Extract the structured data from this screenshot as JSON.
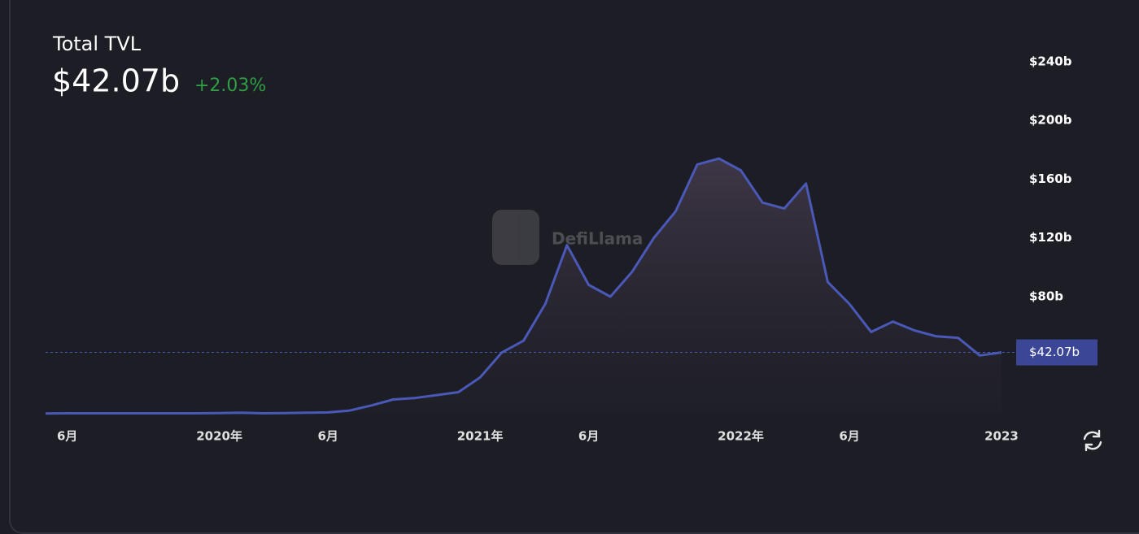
{
  "chart_data": {
    "type": "area-line",
    "title": "Total TVL",
    "headline": "$42.07b",
    "change": "+2.03%",
    "watermark": "DefiLlama",
    "color": "#4a58b8",
    "x": [
      "2019-05",
      "2019-06",
      "2019-07",
      "2019-08",
      "2019-09",
      "2019-10",
      "2019-11",
      "2019-12",
      "2020-01",
      "2020-02",
      "2020-03",
      "2020-04",
      "2020-05",
      "2020-06",
      "2020-07",
      "2020-08",
      "2020-09",
      "2020-10",
      "2020-11",
      "2020-12",
      "2021-01",
      "2021-02",
      "2021-03",
      "2021-04",
      "2021-05",
      "2021-06",
      "2021-07",
      "2021-08",
      "2021-09",
      "2021-10",
      "2021-11",
      "2021-12",
      "2022-01",
      "2022-02",
      "2022-03",
      "2022-04",
      "2022-05",
      "2022-06",
      "2022-07",
      "2022-08",
      "2022-09",
      "2022-10",
      "2022-11",
      "2022-12",
      "2023-01"
    ],
    "values": [
      0.5,
      0.6,
      0.6,
      0.6,
      0.6,
      0.6,
      0.6,
      0.6,
      0.7,
      1,
      0.6,
      0.8,
      1,
      1.2,
      2.5,
      6,
      10,
      11,
      13,
      15,
      25,
      42,
      50,
      75,
      115,
      88,
      80,
      97,
      120,
      138,
      170,
      174,
      166,
      144,
      140,
      157,
      90,
      75,
      56,
      63,
      57,
      53,
      52,
      40,
      42.07
    ],
    "xlim": [
      "2019-05",
      "2023-01"
    ],
    "xticks": [
      {
        "value": "2019-06",
        "label": "6月"
      },
      {
        "value": "2020-01",
        "label": "2020年"
      },
      {
        "value": "2020-06",
        "label": "6月"
      },
      {
        "value": "2021-01",
        "label": "2021年"
      },
      {
        "value": "2021-06",
        "label": "6月"
      },
      {
        "value": "2022-01",
        "label": "2022年"
      },
      {
        "value": "2022-06",
        "label": "6月"
      },
      {
        "value": "2023-01",
        "label": "2023"
      }
    ],
    "ylim": [
      0,
      260
    ],
    "yticks": [
      {
        "value": 80,
        "label": "$80b"
      },
      {
        "value": 120,
        "label": "$120b"
      },
      {
        "value": 160,
        "label": "$160b"
      },
      {
        "value": 200,
        "label": "$200b"
      },
      {
        "value": 240,
        "label": "$240b"
      }
    ],
    "reference_line": {
      "value": 42.07,
      "label": "$42.07b"
    }
  }
}
